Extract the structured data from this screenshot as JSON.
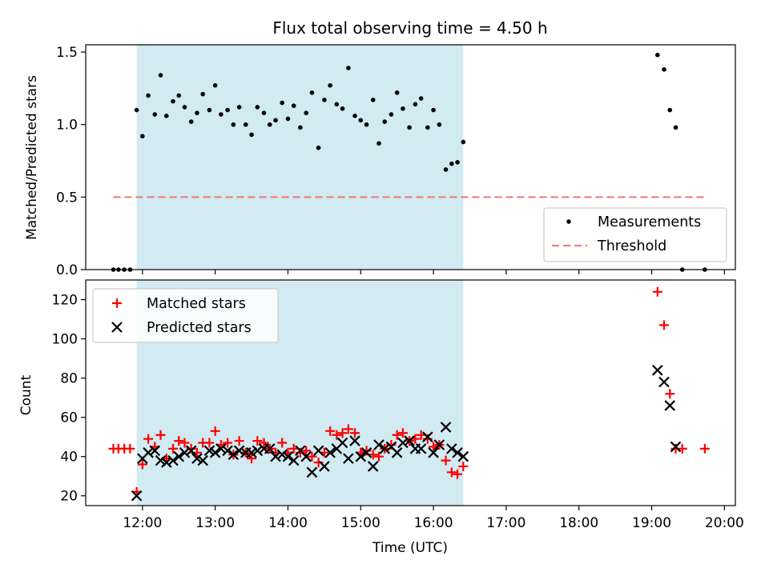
{
  "chart_data": {
    "type": "scatter",
    "title": "Flux total observing time = 4.50 h",
    "xlabel": "Time (UTC)",
    "x_unit": "hours UTC",
    "x_range": [
      11.22,
      20.15
    ],
    "x_ticks": [
      {
        "value": 12,
        "label": "12:00"
      },
      {
        "value": 13,
        "label": "13:00"
      },
      {
        "value": 14,
        "label": "14:00"
      },
      {
        "value": 15,
        "label": "15:00"
      },
      {
        "value": 16,
        "label": "16:00"
      },
      {
        "value": 17,
        "label": "17:00"
      },
      {
        "value": 18,
        "label": "18:00"
      },
      {
        "value": 19,
        "label": "19:00"
      },
      {
        "value": 20,
        "label": "20:00"
      }
    ],
    "observing_window": {
      "start": 11.92,
      "end": 16.41,
      "color": "#add8e6"
    },
    "panels": [
      {
        "id": "ratio",
        "ylabel": "Matched/Predicted stars",
        "ylim": [
          0,
          1.55
        ],
        "y_ticks": [
          {
            "value": 0,
            "label": "0.0"
          },
          {
            "value": 0.5,
            "label": "0.5"
          },
          {
            "value": 1.0,
            "label": "1.0"
          },
          {
            "value": 1.5,
            "label": "1.5"
          }
        ],
        "threshold": {
          "value": 0.5,
          "x_start": 11.6,
          "x_end": 19.73,
          "color": "#f08080",
          "label": "Threshold"
        },
        "legend_position": "lower-right",
        "series": [
          {
            "name": "Measurements",
            "marker": "dot",
            "color": "#000000",
            "points": [
              [
                11.6,
                0.0
              ],
              [
                11.67,
                0.0
              ],
              [
                11.75,
                0.0
              ],
              [
                11.83,
                0.0
              ],
              [
                11.92,
                1.1
              ],
              [
                12.0,
                0.92
              ],
              [
                12.08,
                1.2
              ],
              [
                12.17,
                1.07
              ],
              [
                12.25,
                1.34
              ],
              [
                12.33,
                1.06
              ],
              [
                12.42,
                1.16
              ],
              [
                12.5,
                1.2
              ],
              [
                12.58,
                1.12
              ],
              [
                12.67,
                1.02
              ],
              [
                12.75,
                1.08
              ],
              [
                12.83,
                1.21
              ],
              [
                12.92,
                1.1
              ],
              [
                13.0,
                1.27
              ],
              [
                13.08,
                1.07
              ],
              [
                13.17,
                1.1
              ],
              [
                13.25,
                1.0
              ],
              [
                13.33,
                1.12
              ],
              [
                13.42,
                1.0
              ],
              [
                13.5,
                0.93
              ],
              [
                13.58,
                1.12
              ],
              [
                13.67,
                1.08
              ],
              [
                13.75,
                1.0
              ],
              [
                13.83,
                1.03
              ],
              [
                13.92,
                1.15
              ],
              [
                14.0,
                1.04
              ],
              [
                14.08,
                1.13
              ],
              [
                14.17,
                0.98
              ],
              [
                14.25,
                1.08
              ],
              [
                14.33,
                1.22
              ],
              [
                14.42,
                0.84
              ],
              [
                14.5,
                1.17
              ],
              [
                14.58,
                1.27
              ],
              [
                14.67,
                1.14
              ],
              [
                14.75,
                1.11
              ],
              [
                14.83,
                1.39
              ],
              [
                14.92,
                1.06
              ],
              [
                15.0,
                1.03
              ],
              [
                15.08,
                1.0
              ],
              [
                15.17,
                1.17
              ],
              [
                15.25,
                0.87
              ],
              [
                15.33,
                1.02
              ],
              [
                15.42,
                1.07
              ],
              [
                15.5,
                1.22
              ],
              [
                15.58,
                1.11
              ],
              [
                15.67,
                0.98
              ],
              [
                15.75,
                1.14
              ],
              [
                15.83,
                1.18
              ],
              [
                15.92,
                0.98
              ],
              [
                16.0,
                1.1
              ],
              [
                16.08,
                1.0
              ],
              [
                16.17,
                0.69
              ],
              [
                16.25,
                0.73
              ],
              [
                16.33,
                0.74
              ],
              [
                16.41,
                0.88
              ],
              [
                19.08,
                1.48
              ],
              [
                19.17,
                1.38
              ],
              [
                19.25,
                1.1
              ],
              [
                19.33,
                0.98
              ],
              [
                19.42,
                0.0
              ],
              [
                19.73,
                0.0
              ]
            ]
          }
        ]
      },
      {
        "id": "count",
        "ylabel": "Count",
        "ylim": [
          15,
          130
        ],
        "y_ticks": [
          {
            "value": 20,
            "label": "20"
          },
          {
            "value": 40,
            "label": "40"
          },
          {
            "value": 60,
            "label": "60"
          },
          {
            "value": 80,
            "label": "80"
          },
          {
            "value": 100,
            "label": "100"
          },
          {
            "value": 120,
            "label": "120"
          }
        ],
        "legend_position": "upper-left",
        "series": [
          {
            "name": "Matched stars",
            "marker": "plus",
            "color": "#ff0000",
            "points": [
              [
                11.6,
                44
              ],
              [
                11.67,
                44
              ],
              [
                11.75,
                44
              ],
              [
                11.83,
                44
              ],
              [
                11.92,
                22
              ],
              [
                12.0,
                36
              ],
              [
                12.08,
                49
              ],
              [
                12.17,
                45
              ],
              [
                12.25,
                51
              ],
              [
                12.33,
                39
              ],
              [
                12.42,
                44
              ],
              [
                12.5,
                48
              ],
              [
                12.58,
                47
              ],
              [
                12.67,
                44
              ],
              [
                12.75,
                42
              ],
              [
                12.83,
                47
              ],
              [
                12.92,
                47
              ],
              [
                13.0,
                53
              ],
              [
                13.08,
                46
              ],
              [
                13.17,
                47
              ],
              [
                13.25,
                41
              ],
              [
                13.33,
                48
              ],
              [
                13.42,
                42
              ],
              [
                13.5,
                39
              ],
              [
                13.58,
                48
              ],
              [
                13.67,
                47
              ],
              [
                13.75,
                44
              ],
              [
                13.83,
                42
              ],
              [
                13.92,
                47
              ],
              [
                14.0,
                42
              ],
              [
                14.08,
                44
              ],
              [
                14.17,
                42
              ],
              [
                14.25,
                43
              ],
              [
                14.33,
                40
              ],
              [
                14.42,
                37
              ],
              [
                14.5,
                42
              ],
              [
                14.58,
                53
              ],
              [
                14.67,
                51
              ],
              [
                14.75,
                52
              ],
              [
                14.83,
                54
              ],
              [
                14.92,
                52
              ],
              [
                15.0,
                42
              ],
              [
                15.08,
                43
              ],
              [
                15.17,
                41
              ],
              [
                15.25,
                40
              ],
              [
                15.33,
                44
              ],
              [
                15.42,
                46
              ],
              [
                15.5,
                51
              ],
              [
                15.58,
                52
              ],
              [
                15.67,
                48
              ],
              [
                15.75,
                49
              ],
              [
                15.83,
                51
              ],
              [
                15.92,
                49
              ],
              [
                16.0,
                45
              ],
              [
                16.08,
                46
              ],
              [
                16.17,
                38
              ],
              [
                16.25,
                32
              ],
              [
                16.33,
                31
              ],
              [
                16.41,
                35
              ],
              [
                19.08,
                124
              ],
              [
                19.17,
                107
              ],
              [
                19.25,
                72
              ],
              [
                19.33,
                44
              ],
              [
                19.42,
                44
              ],
              [
                19.73,
                44
              ]
            ]
          },
          {
            "name": "Predicted stars",
            "marker": "x",
            "color": "#000000",
            "points": [
              [
                11.92,
                20
              ],
              [
                12.0,
                39
              ],
              [
                12.08,
                42
              ],
              [
                12.17,
                43
              ],
              [
                12.25,
                38
              ],
              [
                12.33,
                37
              ],
              [
                12.42,
                38
              ],
              [
                12.5,
                40
              ],
              [
                12.58,
                42
              ],
              [
                12.67,
                43
              ],
              [
                12.75,
                39
              ],
              [
                12.83,
                38
              ],
              [
                12.92,
                43
              ],
              [
                13.0,
                42
              ],
              [
                13.08,
                44
              ],
              [
                13.17,
                43
              ],
              [
                13.25,
                41
              ],
              [
                13.33,
                43
              ],
              [
                13.42,
                42
              ],
              [
                13.5,
                42
              ],
              [
                13.58,
                43
              ],
              [
                13.67,
                44
              ],
              [
                13.75,
                44
              ],
              [
                13.83,
                40
              ],
              [
                13.92,
                41
              ],
              [
                14.0,
                40
              ],
              [
                14.08,
                38
              ],
              [
                14.17,
                43
              ],
              [
                14.25,
                40
              ],
              [
                14.33,
                32
              ],
              [
                14.42,
                43
              ],
              [
                14.5,
                35
              ],
              [
                14.58,
                42
              ],
              [
                14.67,
                44
              ],
              [
                14.75,
                47
              ],
              [
                14.83,
                39
              ],
              [
                14.92,
                48
              ],
              [
                15.0,
                40
              ],
              [
                15.08,
                42
              ],
              [
                15.17,
                35
              ],
              [
                15.25,
                46
              ],
              [
                15.33,
                44
              ],
              [
                15.42,
                45
              ],
              [
                15.5,
                42
              ],
              [
                15.58,
                47
              ],
              [
                15.67,
                48
              ],
              [
                15.75,
                44
              ],
              [
                15.83,
                44
              ],
              [
                15.92,
                50
              ],
              [
                16.0,
                42
              ],
              [
                16.08,
                46
              ],
              [
                16.17,
                55
              ],
              [
                16.25,
                44
              ],
              [
                16.33,
                42
              ],
              [
                16.41,
                40
              ],
              [
                19.08,
                84
              ],
              [
                19.17,
                78
              ],
              [
                19.25,
                66
              ],
              [
                19.33,
                45
              ]
            ]
          }
        ]
      }
    ]
  }
}
